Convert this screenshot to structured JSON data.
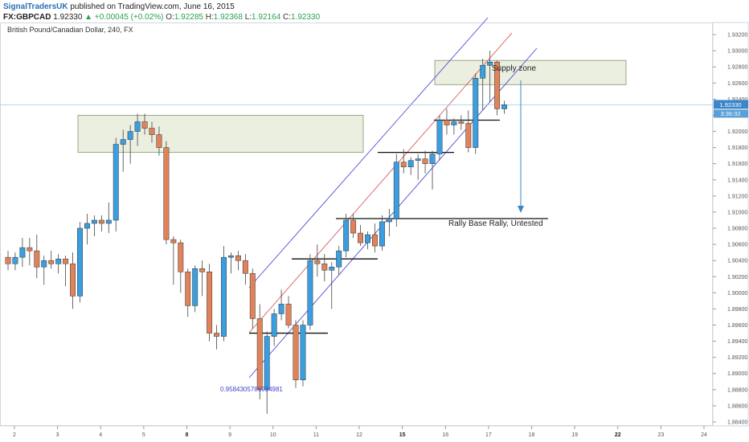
{
  "header": {
    "author": "SignalTradersUK",
    "published": "published on TradingView.com, June 16, 2015",
    "symbol": "FX:GBPCAD",
    "last": "1.92330",
    "change_arrow": "▲",
    "change": "+0.00045 (+0.02%)",
    "o_label": "O:",
    "o_value": "1.92285",
    "h_label": "H:",
    "h_value": "1.92368",
    "l_label": "L:",
    "l_value": "1.92164",
    "c_label": "C:",
    "c_value": "1.92330"
  },
  "chart_title": "British Pound/Canadian Dollar, 240, FX",
  "chart_data": {
    "type": "candlestick",
    "y_ticks": [
      "1.93200",
      "1.93000",
      "1.92800",
      "1.92600",
      "1.92400",
      "1.92200",
      "1.92000",
      "1.91800",
      "1.91600",
      "1.91400",
      "1.91200",
      "1.91000",
      "1.90800",
      "1.90600",
      "1.90400",
      "1.90200",
      "1.90000",
      "1.89800",
      "1.89600",
      "1.89400",
      "1.89200",
      "1.89000",
      "1.88800",
      "1.88600",
      "1.88400"
    ],
    "ylim": [
      1.8835,
      1.9335
    ],
    "x_ticks": [
      {
        "label": "2",
        "bold": false
      },
      {
        "label": "3",
        "bold": false
      },
      {
        "label": "4",
        "bold": false
      },
      {
        "label": "5",
        "bold": false
      },
      {
        "label": "8",
        "bold": true
      },
      {
        "label": "9",
        "bold": false
      },
      {
        "label": "10",
        "bold": false
      },
      {
        "label": "11",
        "bold": false
      },
      {
        "label": "12",
        "bold": false
      },
      {
        "label": "15",
        "bold": true
      },
      {
        "label": "16",
        "bold": false
      },
      {
        "label": "17",
        "bold": false
      },
      {
        "label": "18",
        "bold": false
      },
      {
        "label": "19",
        "bold": false
      },
      {
        "label": "22",
        "bold": true
      },
      {
        "label": "23",
        "bold": false
      },
      {
        "label": "24",
        "bold": false
      }
    ],
    "price_label": "1.92330",
    "countdown_label": "3:36:32",
    "bull_color": "#3a9ee0",
    "bear_color": "#e0835a",
    "candles": [
      [
        1.9044,
        1.9052,
        1.9028,
        1.9036
      ],
      [
        1.9036,
        1.905,
        1.9028,
        1.9044
      ],
      [
        1.9044,
        1.9068,
        1.9032,
        1.9056
      ],
      [
        1.9056,
        1.9068,
        1.9034,
        1.9052
      ],
      [
        1.9052,
        1.9072,
        1.9018,
        1.9032
      ],
      [
        1.9032,
        1.9046,
        1.901,
        1.904
      ],
      [
        1.904,
        1.9052,
        1.903,
        1.9036
      ],
      [
        1.9036,
        1.9048,
        1.9024,
        1.9042
      ],
      [
        1.9042,
        1.9046,
        1.9008,
        1.9036
      ],
      [
        1.9036,
        1.905,
        1.898,
        1.8996
      ],
      [
        1.8996,
        1.9088,
        1.8988,
        1.908
      ],
      [
        1.908,
        1.9098,
        1.906,
        1.9086
      ],
      [
        1.9086,
        1.9096,
        1.907,
        1.909
      ],
      [
        1.909,
        1.9096,
        1.9076,
        1.9086
      ],
      [
        1.9086,
        1.9112,
        1.9074,
        1.909
      ],
      [
        1.909,
        1.9192,
        1.9076,
        1.9184
      ],
      [
        1.9184,
        1.9202,
        1.915,
        1.919
      ],
      [
        1.919,
        1.9208,
        1.916,
        1.92
      ],
      [
        1.92,
        1.9222,
        1.9182,
        1.9212
      ],
      [
        1.9212,
        1.9222,
        1.9196,
        1.9204
      ],
      [
        1.9204,
        1.9212,
        1.9186,
        1.9196
      ],
      [
        1.9196,
        1.9206,
        1.917,
        1.918
      ],
      [
        1.918,
        1.9188,
        1.906,
        1.9066
      ],
      [
        1.9066,
        1.907,
        1.901,
        1.9062
      ],
      [
        1.9062,
        1.9066,
        1.9,
        1.9026
      ],
      [
        1.9026,
        1.903,
        1.897,
        1.8984
      ],
      [
        1.8984,
        1.9034,
        1.8976,
        1.903
      ],
      [
        1.903,
        1.904,
        1.8996,
        1.9026
      ],
      [
        1.9026,
        1.9036,
        1.894,
        1.895
      ],
      [
        1.895,
        1.896,
        1.893,
        1.8946
      ],
      [
        1.8946,
        1.9058,
        1.894,
        1.9044
      ],
      [
        1.9044,
        1.905,
        1.9024,
        1.9046
      ],
      [
        1.9046,
        1.9052,
        1.9028,
        1.904
      ],
      [
        1.904,
        1.9048,
        1.901,
        1.9024
      ],
      [
        1.9024,
        1.903,
        1.8956,
        1.8968
      ],
      [
        1.8968,
        1.8986,
        1.8868,
        1.888
      ],
      [
        1.888,
        1.8952,
        1.885,
        1.8946
      ],
      [
        1.8946,
        1.898,
        1.8934,
        1.8974
      ],
      [
        1.8974,
        1.9004,
        1.8966,
        1.8986
      ],
      [
        1.8986,
        1.8996,
        1.8956,
        1.896
      ],
      [
        1.896,
        1.8966,
        1.8882,
        1.8892
      ],
      [
        1.8892,
        1.8966,
        1.8884,
        1.896
      ],
      [
        1.896,
        1.9048,
        1.8954,
        1.904
      ],
      [
        1.904,
        1.906,
        1.902,
        1.9036
      ],
      [
        1.9036,
        1.9048,
        1.9014,
        1.9028
      ],
      [
        1.9028,
        1.9038,
        1.898,
        1.9032
      ],
      [
        1.9032,
        1.9058,
        1.9022,
        1.9052
      ],
      [
        1.9052,
        1.9098,
        1.9044,
        1.909
      ],
      [
        1.909,
        1.9098,
        1.9068,
        1.9074
      ],
      [
        1.9074,
        1.9084,
        1.9058,
        1.9062
      ],
      [
        1.9062,
        1.9076,
        1.9054,
        1.9072
      ],
      [
        1.9072,
        1.9086,
        1.905,
        1.9058
      ],
      [
        1.9058,
        1.9096,
        1.9052,
        1.9088
      ],
      [
        1.9088,
        1.9104,
        1.907,
        1.9092
      ],
      [
        1.9092,
        1.9172,
        1.9082,
        1.9162
      ],
      [
        1.9162,
        1.9178,
        1.9148,
        1.9156
      ],
      [
        1.9156,
        1.9168,
        1.9146,
        1.9164
      ],
      [
        1.9164,
        1.9172,
        1.914,
        1.9166
      ],
      [
        1.9166,
        1.9176,
        1.9148,
        1.916
      ],
      [
        1.916,
        1.9176,
        1.9128,
        1.9172
      ],
      [
        1.9172,
        1.922,
        1.9164,
        1.9214
      ],
      [
        1.9214,
        1.9228,
        1.9196,
        1.9208
      ],
      [
        1.9208,
        1.9216,
        1.9196,
        1.9212
      ],
      [
        1.9212,
        1.922,
        1.9202,
        1.921
      ],
      [
        1.921,
        1.9226,
        1.9174,
        1.918
      ],
      [
        1.918,
        1.9272,
        1.9172,
        1.9266
      ],
      [
        1.9266,
        1.929,
        1.9226,
        1.9282
      ],
      [
        1.9282,
        1.93,
        1.9236,
        1.9286
      ],
      [
        1.9286,
        1.9288,
        1.922,
        1.9228
      ],
      [
        1.9228,
        1.9238,
        1.9222,
        1.9233
      ]
    ],
    "annotations": {
      "supply_zone_label": "Supply zone",
      "rbr_label": "Rally Base Rally, Untested",
      "fib_label": "0.9584305786934981"
    }
  }
}
